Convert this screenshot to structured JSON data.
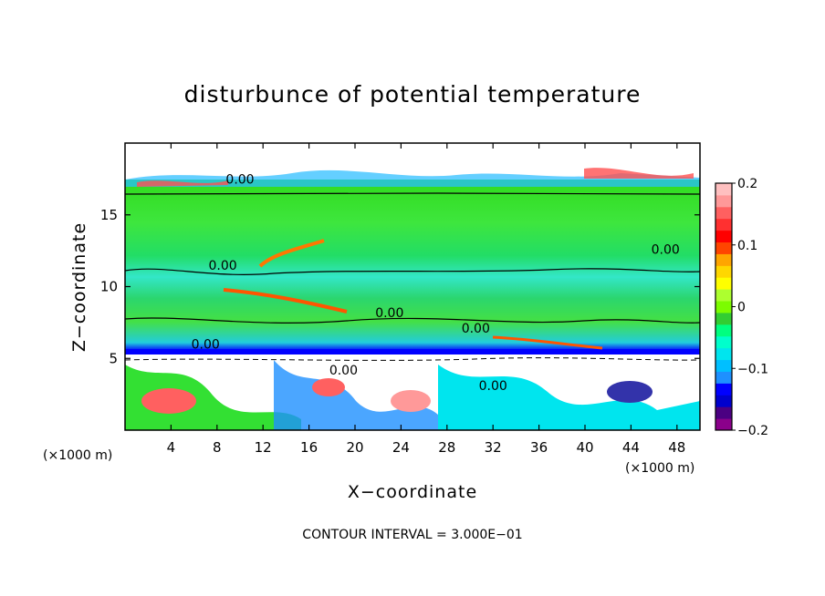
{
  "chart_data": {
    "type": "heatmap",
    "title": "disturbunce of potential temperature",
    "xlabel": "X−coordinate",
    "ylabel": "Z−coordinate",
    "x_unit": "(×1000 m)",
    "x_unit_right": "(×1000 m)",
    "xlim": [
      0,
      50
    ],
    "ylim": [
      0,
      20
    ],
    "x_ticks": [
      4,
      8,
      12,
      16,
      20,
      24,
      28,
      32,
      36,
      40,
      44,
      48
    ],
    "y_ticks": [
      5,
      10,
      15
    ],
    "contour_interval_text": "CONTOUR INTERVAL = 3.000E−01",
    "contour_labels": [
      {
        "text": "0.00",
        "x": 10.0,
        "z": 17.5
      },
      {
        "text": "0.00",
        "x": 47.0,
        "z": 12.6
      },
      {
        "text": "0.00",
        "x": 8.5,
        "z": 11.5
      },
      {
        "text": "0.00",
        "x": 23.0,
        "z": 8.2
      },
      {
        "text": "0.00",
        "x": 30.5,
        "z": 7.1
      },
      {
        "text": "0.00",
        "x": 7.0,
        "z": 6.0
      },
      {
        "text": "0.00",
        "x": 19.0,
        "z": 4.2
      },
      {
        "text": "0.00",
        "x": 32.0,
        "z": 3.1
      }
    ],
    "colorbar": {
      "range": [
        -0.2,
        0.2
      ],
      "ticks": [
        "0.2",
        "0.1",
        "0",
        "−0.1",
        "−0.2"
      ],
      "colors": [
        "#8b008b",
        "#4b0082",
        "#0000cd",
        "#0000ff",
        "#1e90ff",
        "#00bfff",
        "#00e5ee",
        "#00ffcc",
        "#00ff7f",
        "#32cd32",
        "#7cfc00",
        "#adff2f",
        "#ffff00",
        "#ffd700",
        "#ffa500",
        "#ff4500",
        "#ff0000",
        "#ff3030",
        "#ff6060",
        "#ff9999",
        "#ffc0c0"
      ]
    }
  }
}
